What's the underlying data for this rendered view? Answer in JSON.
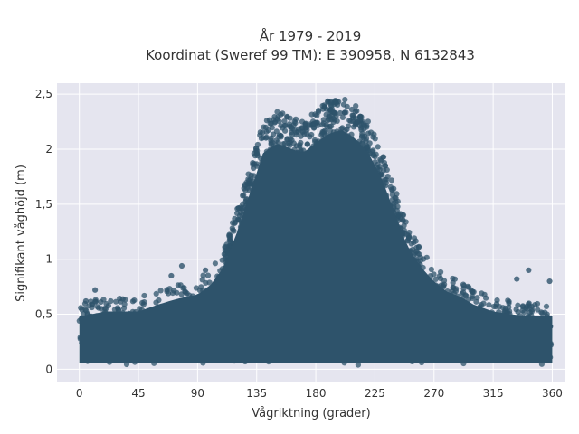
{
  "chart_data": {
    "type": "scatter",
    "title_lines": [
      "År 1979 - 2019",
      "Koordinat (Sweref 99 TM): E 390958, N 6132843"
    ],
    "xlabel": "Vågriktning (grader)",
    "ylabel": "Signifikant våghöjd (m)",
    "xlim": [
      -17,
      370
    ],
    "ylim": [
      -0.12,
      2.6
    ],
    "xticks": [
      0,
      45,
      90,
      135,
      180,
      225,
      270,
      315,
      360
    ],
    "xtick_labels": [
      "0",
      "45",
      "90",
      "135",
      "180",
      "225",
      "270",
      "315",
      "360"
    ],
    "yticks": [
      0,
      0.5,
      1,
      1.5,
      2,
      2.5
    ],
    "ytick_labels": [
      "0",
      "0,5",
      "1",
      "1,5",
      "2",
      "2,5"
    ],
    "grid": true,
    "legend": "none",
    "marker_color": "#2e536b",
    "background_color": "#e5e5ef",
    "envelope": {
      "direction": [
        0,
        20,
        45,
        60,
        75,
        90,
        100,
        110,
        120,
        130,
        140,
        150,
        160,
        170,
        180,
        190,
        200,
        210,
        220,
        230,
        240,
        250,
        260,
        270,
        280,
        290,
        300,
        315,
        330,
        345,
        360
      ],
      "max_height": [
        0.6,
        0.65,
        0.65,
        0.72,
        0.78,
        0.82,
        0.92,
        1.1,
        1.45,
        1.85,
        2.25,
        2.35,
        2.3,
        2.25,
        2.35,
        2.45,
        2.48,
        2.4,
        2.25,
        2.0,
        1.65,
        1.3,
        1.1,
        0.95,
        0.85,
        0.8,
        0.72,
        0.65,
        0.62,
        0.6,
        0.6
      ]
    },
    "outliers": [
      {
        "x": 12,
        "y": 0.72
      },
      {
        "x": 78,
        "y": 0.94
      },
      {
        "x": 70,
        "y": 0.85
      },
      {
        "x": 342,
        "y": 0.9
      },
      {
        "x": 358,
        "y": 0.8
      },
      {
        "x": 333,
        "y": 0.82
      },
      {
        "x": 5,
        "y": 0.62
      },
      {
        "x": 96,
        "y": 0.9
      }
    ]
  }
}
